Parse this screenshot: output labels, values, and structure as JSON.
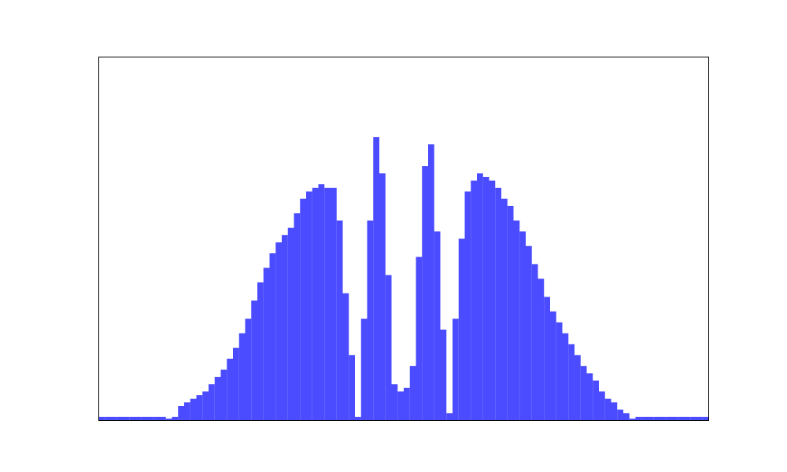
{
  "chart_data": {
    "type": "histogram",
    "color": "#4b4bff",
    "bins": [
      0,
      1,
      2,
      3,
      4,
      5,
      6,
      7,
      8,
      9,
      10,
      11,
      12,
      13,
      14,
      15,
      16,
      17,
      18,
      19,
      20,
      21,
      22,
      23,
      24,
      25,
      26,
      27,
      28,
      29,
      30,
      31,
      32,
      33,
      34,
      35,
      36,
      37,
      38,
      39,
      40,
      41,
      42,
      43,
      44,
      45,
      46,
      47,
      48,
      49,
      50,
      51,
      52,
      53,
      54,
      55,
      56,
      57,
      58,
      59,
      60,
      61,
      62,
      63,
      64,
      65,
      66,
      67,
      68,
      69,
      70,
      71,
      72,
      73,
      74,
      75,
      76,
      77,
      78,
      79,
      80,
      81,
      82,
      83,
      84,
      85,
      86,
      87,
      88,
      89,
      90,
      91,
      92,
      93,
      94,
      95,
      96,
      97,
      98,
      99,
      100
    ],
    "values": [
      1,
      1,
      1,
      1,
      1,
      1,
      1,
      1,
      1,
      1,
      1,
      0.5,
      1,
      4,
      5,
      6,
      7,
      8,
      10,
      12,
      14,
      17,
      20,
      24,
      28,
      33,
      38,
      42,
      46,
      49,
      51,
      53,
      57,
      61,
      63,
      64,
      65,
      64,
      64,
      55,
      35,
      18,
      1,
      28,
      55,
      78,
      68,
      40,
      10,
      8,
      9,
      15,
      45,
      70,
      76,
      52,
      25,
      2,
      28,
      50,
      63,
      66,
      68,
      67,
      66,
      64,
      61,
      59,
      55,
      52,
      48,
      43,
      39,
      34,
      30,
      27,
      24,
      21,
      18,
      15,
      13,
      11,
      8,
      6,
      5,
      3,
      2,
      0.5,
      1,
      1,
      1,
      1,
      1,
      1,
      1,
      1,
      1,
      1,
      1,
      1
    ],
    "xlim": [
      0,
      100
    ],
    "ylim": [
      0,
      100
    ]
  }
}
